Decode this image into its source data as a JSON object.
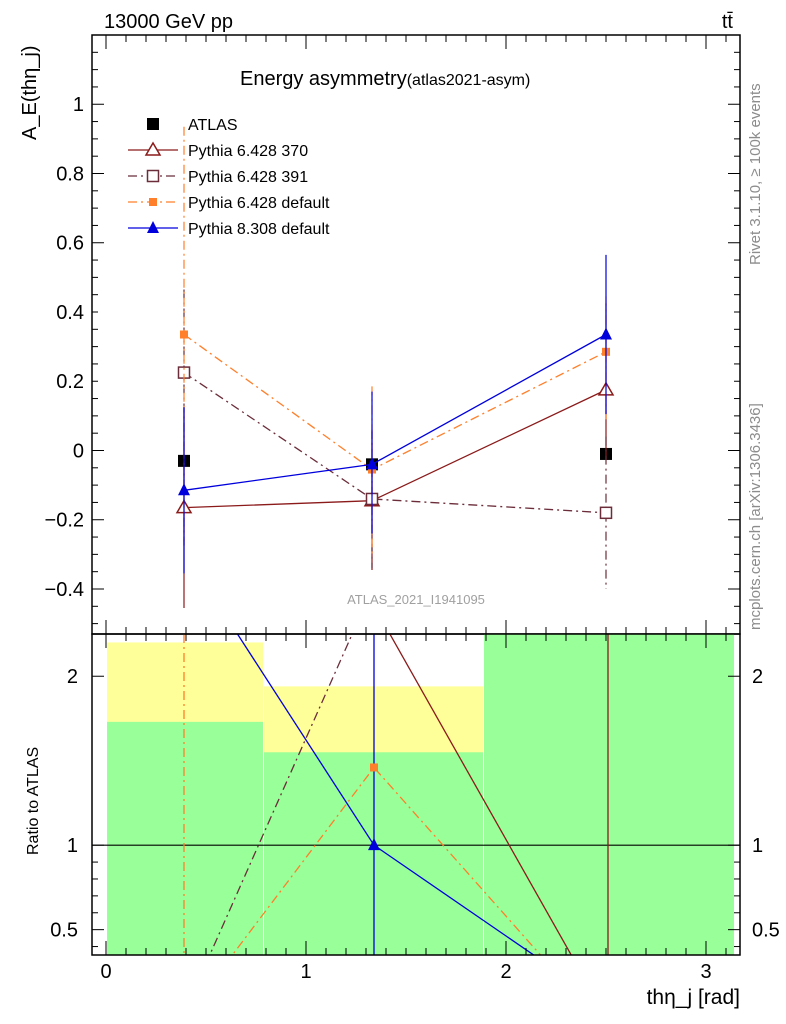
{
  "header": {
    "energy": "13000 GeV pp",
    "process": "tt̄"
  },
  "side_labels": {
    "rivet": "Rivet 3.1.10, ≥ 100k events",
    "mcplots": "mcplots.cern.ch [arXiv:1306.3436]"
  },
  "chart_data": [
    {
      "type": "line",
      "title": "Energy asymmetry",
      "subtitle": "(atlas2021-asym)",
      "ylabel": "A_E(thη_j)",
      "watermark": "ATLAS_2021_I1941095",
      "ylim": [
        -0.53,
        1.2
      ],
      "yticks": [
        -0.4,
        -0.2,
        0,
        0.2,
        0.4,
        0.6,
        0.8,
        1
      ],
      "ytick_labels": [
        "−0.4",
        "−0.2",
        "0",
        "0.2",
        "0.4",
        "0.6",
        "0.8",
        "1"
      ],
      "x": [
        0.39,
        1.33,
        2.5
      ],
      "legend_position": "top-left",
      "series": [
        {
          "name": "ATLAS",
          "marker": "square-filled",
          "color": "#000000",
          "dash": "none",
          "y": [
            -0.03,
            -0.04,
            -0.01
          ],
          "err_lo": [
            0.0,
            0.0,
            0.0
          ],
          "err_hi": [
            0.0,
            0.0,
            0.0
          ]
        },
        {
          "name": "Pythia 6.428 370",
          "marker": "triangle-open",
          "color": "#8b1a1a",
          "dash": "none",
          "y": [
            -0.165,
            -0.145,
            0.175
          ],
          "err_lo": [
            0.29,
            0.2,
            0.2
          ],
          "err_hi": [
            0.29,
            0.2,
            0.25
          ]
        },
        {
          "name": "Pythia 6.428 391",
          "marker": "square-open",
          "color": "#6b2d3a",
          "dash": "dashdot",
          "y": [
            0.225,
            -0.14,
            -0.18
          ],
          "err_lo": [
            0.5,
            0.2,
            0.22
          ],
          "err_hi": [
            0.24,
            0.2,
            0.22
          ]
        },
        {
          "name": "Pythia 6.428 default",
          "marker": "square-filled-small",
          "color": "#ff7f2a",
          "dash": "dashdot",
          "y": [
            0.335,
            -0.055,
            0.285
          ],
          "err_lo": [
            0.6,
            0.25,
            0.2
          ],
          "err_hi": [
            0.6,
            0.24,
            0.16
          ]
        },
        {
          "name": "Pythia 8.308 default",
          "marker": "triangle-filled",
          "color": "#0000dd",
          "dash": "none",
          "y": [
            -0.115,
            -0.04,
            0.335
          ],
          "err_lo": [
            0.24,
            0.2,
            0.23
          ],
          "err_hi": [
            0.24,
            0.21,
            0.23
          ]
        }
      ]
    },
    {
      "type": "line",
      "ylabel": "Ratio to ATLAS",
      "xlabel": "thη_j [rad]",
      "xlim": [
        -0.07,
        3.17
      ],
      "xticks": [
        0,
        1,
        2,
        3
      ],
      "ylim": [
        0.35,
        2.25
      ],
      "yticks": [
        0.5,
        1,
        2
      ],
      "ytick_labels": [
        "0.5",
        "1",
        "2"
      ],
      "bands": [
        {
          "x_from": 0.0,
          "x_to": 0.785,
          "yellow": [
            0.35,
            2.2
          ],
          "green": [
            0.35,
            1.73
          ]
        },
        {
          "x_from": 0.785,
          "x_to": 1.885,
          "yellow": [
            0.55,
            1.94
          ],
          "green": [
            0.35,
            1.55
          ]
        },
        {
          "x_from": 1.885,
          "x_to": 3.14,
          "yellow": [
            0.35,
            2.3
          ],
          "green": [
            0.35,
            2.27
          ]
        }
      ],
      "reference_line": 1,
      "series": [
        {
          "name": "Pythia 6.428 370",
          "x": [
            1.3,
            2.35
          ],
          "y": [
            2.5,
            0.3
          ]
        },
        {
          "name": "Pythia 6.428 391",
          "x": [
            0.5,
            1.25
          ],
          "y": [
            0.3,
            2.3
          ]
        },
        {
          "name": "Pythia 6.428 default",
          "x": [
            0.6,
            1.34,
            2.21
          ],
          "y": [
            0.3,
            1.46,
            0.3
          ]
        },
        {
          "name": "Pythia 8.308 default",
          "x": [
            0.63,
            1.34,
            2.2
          ],
          "y": [
            2.3,
            1.0,
            0.3
          ]
        }
      ],
      "vertical_lines": [
        {
          "series": "Pythia 6.428 default",
          "x": 0.39
        },
        {
          "series": "Pythia 8.308 default",
          "x": 1.34
        },
        {
          "series": "Pythia 6.428 370",
          "x": 2.51
        }
      ]
    }
  ]
}
